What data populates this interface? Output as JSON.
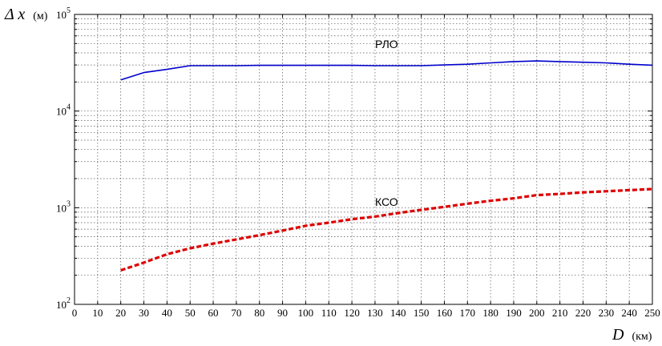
{
  "chart_data": {
    "type": "line",
    "title": "",
    "xlabel": {
      "symbol": "D",
      "unit": "(км)"
    },
    "ylabel": {
      "symbol": "Δ x",
      "unit": "(м)"
    },
    "xlim": [
      0,
      250
    ],
    "ylim": [
      100,
      100000
    ],
    "yscale": "log",
    "grid": true,
    "x_ticks": [
      0,
      10,
      20,
      30,
      40,
      50,
      60,
      70,
      80,
      90,
      100,
      110,
      120,
      130,
      140,
      150,
      160,
      170,
      180,
      190,
      200,
      210,
      220,
      230,
      240,
      250
    ],
    "y_ticks": [
      {
        "value": 100,
        "base": "10",
        "exp": "2"
      },
      {
        "value": 1000,
        "base": "10",
        "exp": "3"
      },
      {
        "value": 10000,
        "base": "10",
        "exp": "4"
      },
      {
        "value": 100000,
        "base": "10",
        "exp": "5"
      }
    ],
    "series": [
      {
        "label_text": "РЛО",
        "label_at": {
          "x": 135,
          "y": 45000
        },
        "color": "#0000cc",
        "style": "solid",
        "x": [
          20,
          30,
          40,
          50,
          60,
          70,
          80,
          90,
          100,
          110,
          120,
          130,
          140,
          150,
          160,
          170,
          180,
          190,
          200,
          210,
          220,
          230,
          240,
          250
        ],
        "y": [
          21000,
          25000,
          27000,
          29500,
          29500,
          29500,
          29700,
          29700,
          29700,
          29700,
          29700,
          29500,
          29500,
          29500,
          30000,
          30500,
          31500,
          32500,
          33000,
          32500,
          32000,
          31500,
          30500,
          29800
        ]
      },
      {
        "label_text": "КСО",
        "label_at": {
          "x": 135,
          "y": 1050
        },
        "color": "#dd0000",
        "style": "dashed",
        "x": [
          20,
          30,
          40,
          50,
          60,
          70,
          80,
          90,
          100,
          110,
          120,
          130,
          140,
          150,
          160,
          170,
          180,
          190,
          200,
          210,
          220,
          230,
          240,
          250
        ],
        "y": [
          225,
          270,
          330,
          380,
          425,
          470,
          520,
          580,
          650,
          700,
          760,
          810,
          880,
          950,
          1020,
          1100,
          1180,
          1250,
          1350,
          1390,
          1440,
          1480,
          1520,
          1560
        ]
      }
    ]
  }
}
